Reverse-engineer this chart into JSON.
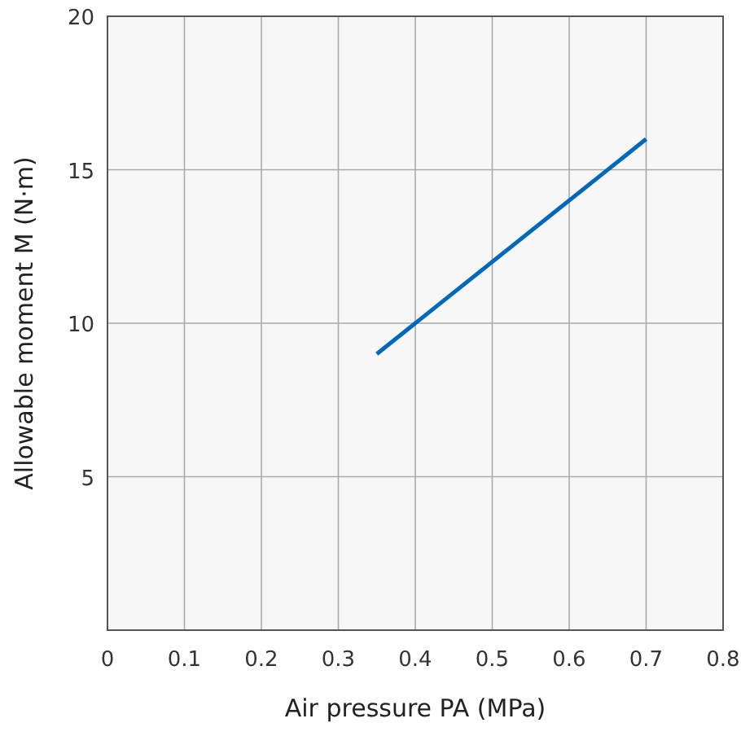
{
  "chart_data": {
    "type": "line",
    "xlabel": "Air pressure PA  (MPa)",
    "ylabel": "Allowable moment M  (N·m)",
    "xlim": [
      0,
      0.8
    ],
    "ylim": [
      0,
      20
    ],
    "xticks": [
      0,
      0.1,
      0.2,
      0.3,
      0.4,
      0.5,
      0.6,
      0.7,
      0.8
    ],
    "yticks": [
      5,
      10,
      15,
      20
    ],
    "grid": true,
    "series": [
      {
        "color": "#0068b7",
        "x": [
          0.35,
          0.7
        ],
        "values": [
          9,
          16
        ]
      }
    ]
  }
}
